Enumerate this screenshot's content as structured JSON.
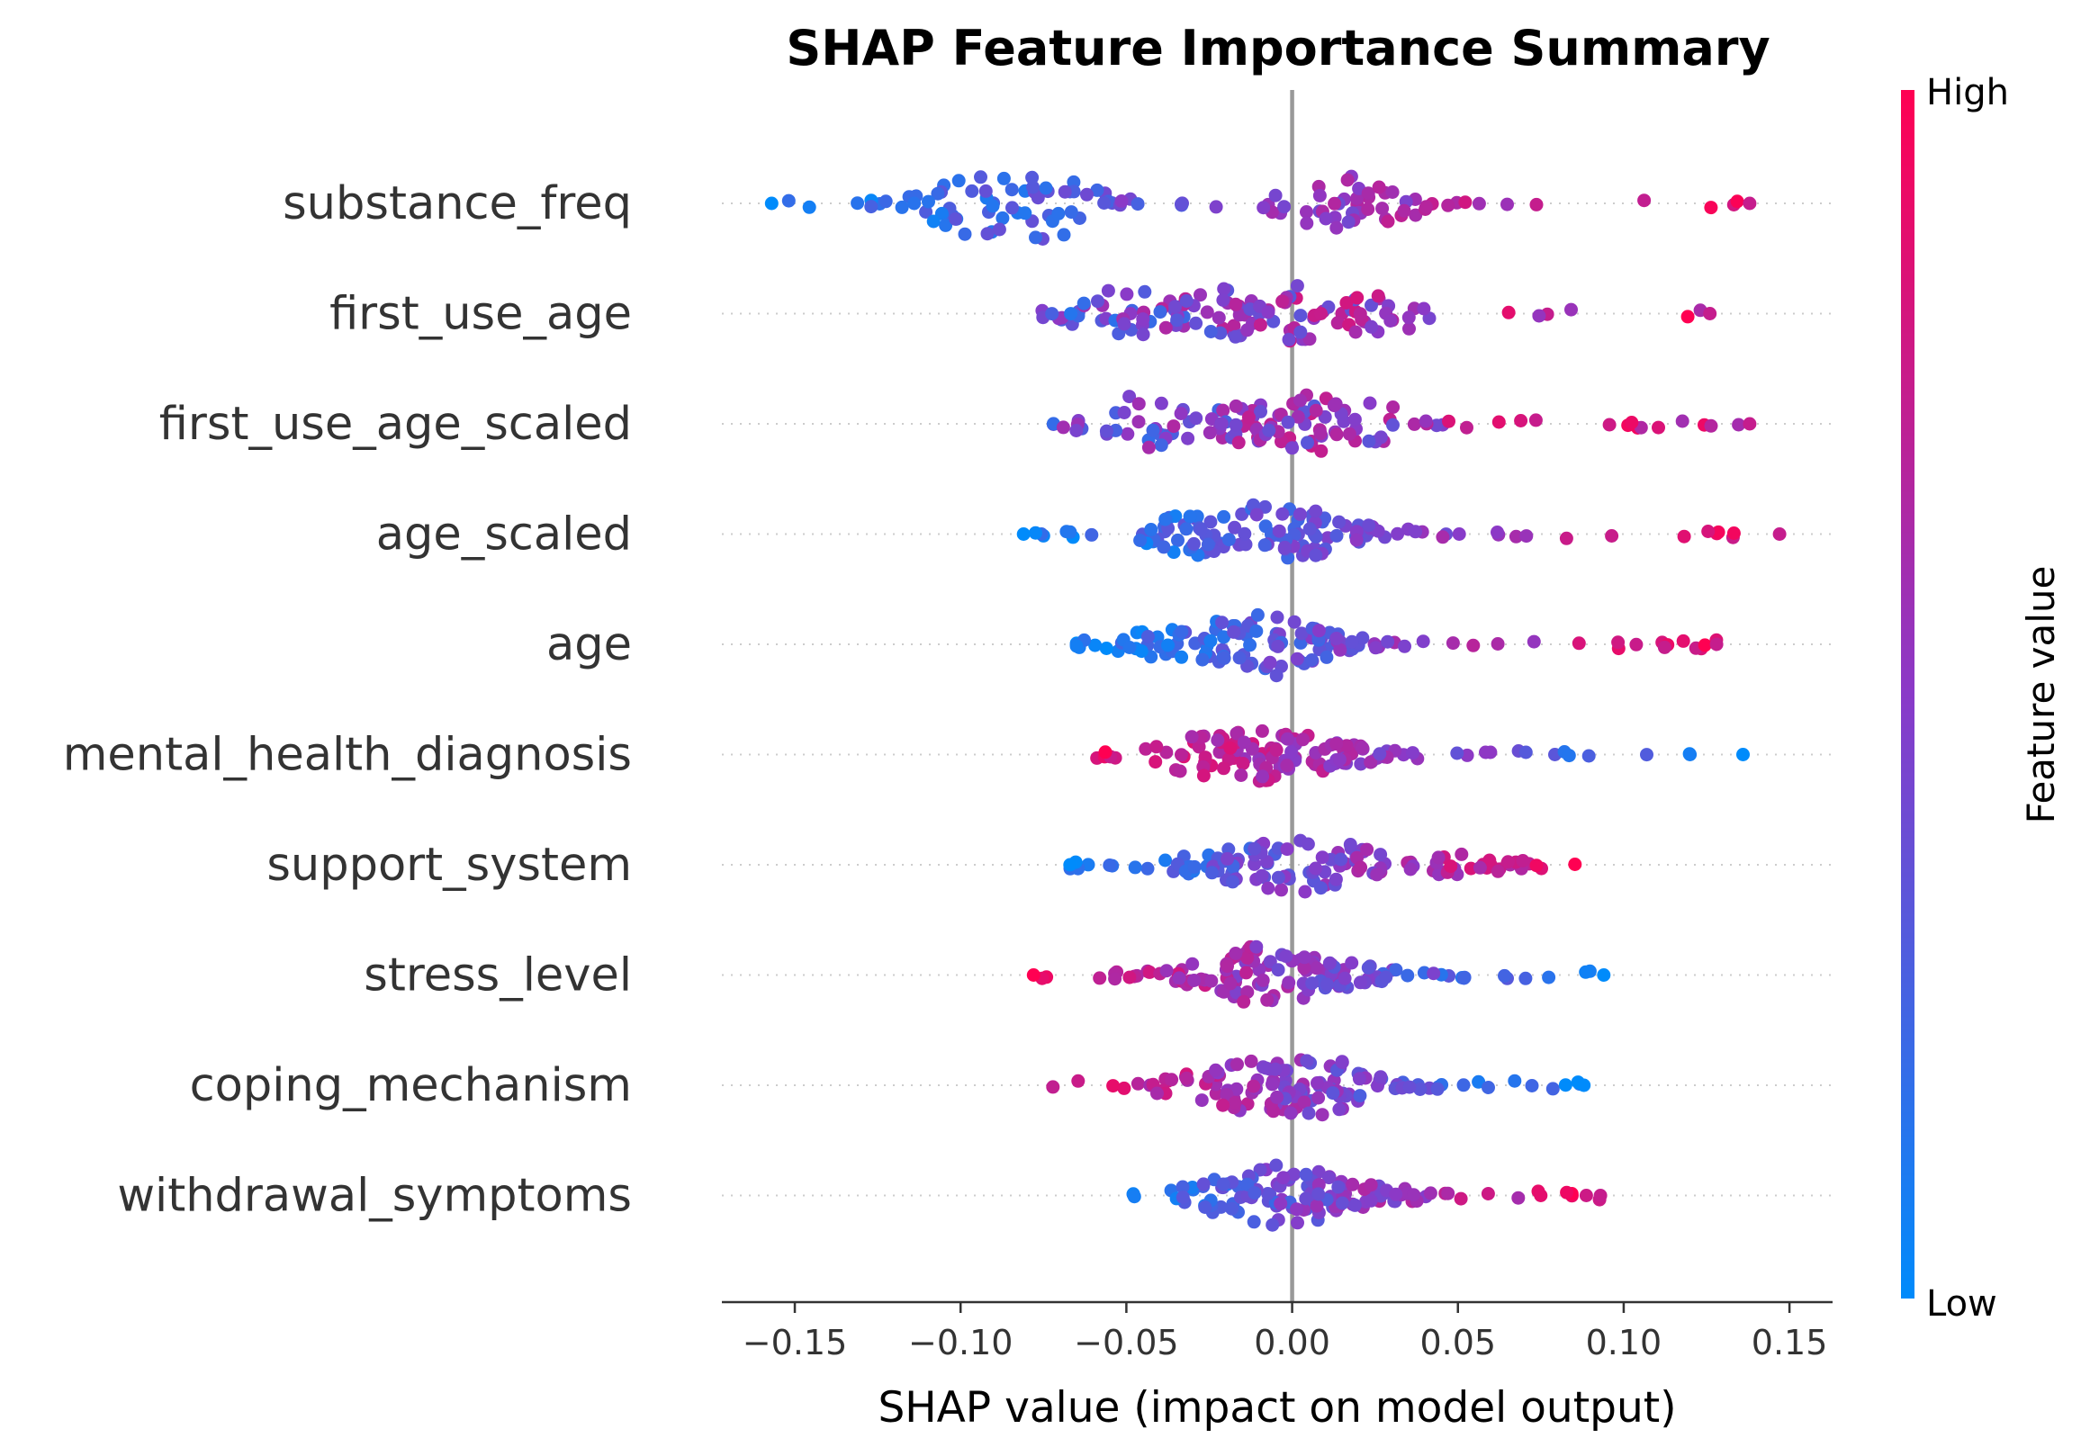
{
  "chart_data": {
    "type": "scatter",
    "title": "SHAP Feature Importance Summary",
    "xlabel": "SHAP value (impact on model output)",
    "xlim": [
      -0.172,
      0.163
    ],
    "xticks": [
      -0.15,
      -0.1,
      -0.05,
      0.0,
      0.05,
      0.1,
      0.15
    ],
    "xtick_labels": [
      "−0.15",
      "−0.10",
      "−0.05",
      "0.00",
      "0.05",
      "0.10",
      "0.15"
    ],
    "zero_line": 0.0,
    "colorbar": {
      "label": "Feature value",
      "high_label": "High",
      "low_label": "Low",
      "high_color": "#ff0052",
      "mid_color": "#8a3ac8",
      "low_color": "#008bfb"
    },
    "features": [
      {
        "name": "substance_freq",
        "min": -0.157,
        "max": 0.138,
        "outliers": [
          -0.157,
          -0.114,
          0.138
        ],
        "density": [
          [
            -0.095,
            0.9
          ],
          [
            -0.075,
            1.0
          ],
          [
            0.012,
            0.85
          ],
          [
            0.025,
            0.6
          ]
        ],
        "trend": "pos"
      },
      {
        "name": "first_use_age",
        "min": -0.078,
        "max": 0.126,
        "outliers": [
          0.126
        ],
        "density": [
          [
            -0.05,
            0.75
          ],
          [
            -0.02,
            0.7
          ],
          [
            0.005,
            0.85
          ],
          [
            0.025,
            0.6
          ]
        ],
        "trend": "mixed_pos"
      },
      {
        "name": "first_use_age_scaled",
        "min": -0.072,
        "max": 0.138,
        "outliers": [
          0.138
        ],
        "density": [
          [
            -0.045,
            0.8
          ],
          [
            -0.015,
            0.6
          ],
          [
            0.005,
            0.8
          ],
          [
            0.02,
            0.7
          ]
        ],
        "trend": "mixed_pos"
      },
      {
        "name": "age_scaled",
        "min": -0.081,
        "max": 0.147,
        "outliers": [
          -0.081,
          0.147
        ],
        "density": [
          [
            -0.03,
            0.6
          ],
          [
            -0.01,
            0.85
          ],
          [
            0.0,
            0.75
          ],
          [
            0.02,
            0.3
          ]
        ],
        "trend": "pos"
      },
      {
        "name": "age",
        "min": -0.065,
        "max": 0.128,
        "outliers": [
          0.128
        ],
        "density": [
          [
            -0.04,
            0.45
          ],
          [
            -0.02,
            0.7
          ],
          [
            -0.005,
            0.9
          ],
          [
            0.01,
            0.3
          ]
        ],
        "trend": "pos"
      },
      {
        "name": "mental_health_diagnosis",
        "min": -0.062,
        "max": 0.136,
        "outliers": [
          0.12,
          0.136
        ],
        "density": [
          [
            -0.025,
            0.6
          ],
          [
            -0.01,
            0.75
          ],
          [
            0.0,
            0.6
          ],
          [
            0.015,
            0.3
          ]
        ],
        "trend": "neg"
      },
      {
        "name": "support_system",
        "min": -0.067,
        "max": 0.087,
        "outliers": [
          -0.067
        ],
        "density": [
          [
            -0.02,
            0.5
          ],
          [
            0.0,
            0.8
          ],
          [
            0.01,
            0.7
          ],
          [
            0.05,
            0.3
          ]
        ],
        "trend": "pos"
      },
      {
        "name": "stress_level",
        "min": -0.078,
        "max": 0.094,
        "outliers": [
          -0.078,
          0.094
        ],
        "density": [
          [
            -0.02,
            0.55
          ],
          [
            -0.01,
            0.8
          ],
          [
            0.0,
            0.7
          ],
          [
            0.015,
            0.35
          ]
        ],
        "trend": "neg"
      },
      {
        "name": "coping_mechanism",
        "min": -0.075,
        "max": 0.088,
        "outliers": [
          0.088
        ],
        "density": [
          [
            -0.025,
            0.5
          ],
          [
            -0.01,
            0.8
          ],
          [
            0.005,
            0.9
          ],
          [
            0.02,
            0.35
          ]
        ],
        "trend": "neg"
      },
      {
        "name": "withdrawal_symptoms",
        "min": -0.062,
        "max": 0.093,
        "outliers": [
          0.075,
          0.093
        ],
        "density": [
          [
            -0.02,
            0.5
          ],
          [
            -0.005,
            0.9
          ],
          [
            0.005,
            0.7
          ],
          [
            0.02,
            0.4
          ]
        ],
        "trend": "pos"
      }
    ],
    "grid": false,
    "legend": "colorbar-right"
  }
}
